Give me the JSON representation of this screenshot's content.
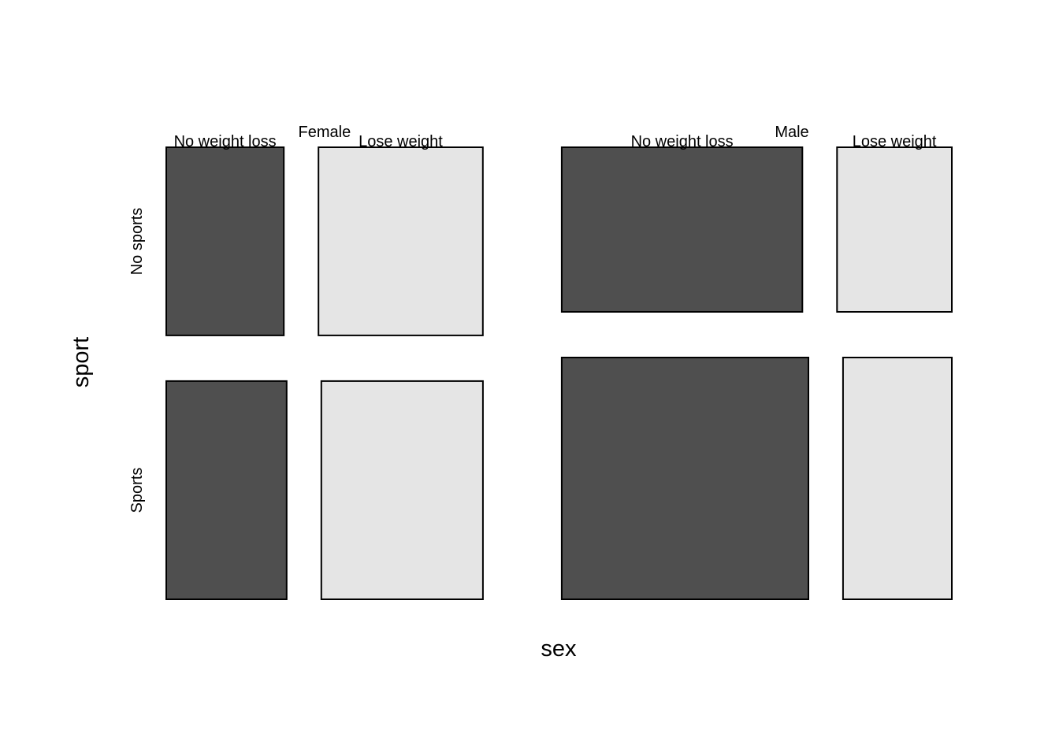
{
  "chart_data": {
    "type": "mosaic",
    "title": "",
    "xlabel": "sex",
    "ylabel": "sport",
    "x_categories": [
      "Female",
      "Male"
    ],
    "y_categories": [
      "No sports",
      "Sports"
    ],
    "sub_categories": [
      "No weight loss",
      "Lose weight"
    ],
    "colors": {
      "No weight loss": "#4f4f4f",
      "Lose weight": "#e5e5e5",
      "border": "#000000"
    },
    "proportions": {
      "sex": {
        "Female": 0.448,
        "Male": 0.552
      },
      "sport_given_sex": {
        "Female": {
          "No sports": 0.463,
          "Sports": 0.537
        },
        "Male": {
          "No sports": 0.405,
          "Sports": 0.595
        }
      },
      "weight_given_sex_sport": {
        "Female": {
          "No sports": {
            "No weight loss": 0.417,
            "Lose weight": 0.583
          },
          "Sports": {
            "No weight loss": 0.427,
            "Lose weight": 0.573
          }
        },
        "Male": {
          "No sports": {
            "No weight loss": 0.677,
            "Lose weight": 0.323
          },
          "Sports": {
            "No weight loss": 0.694,
            "Lose weight": 0.306
          }
        }
      }
    }
  }
}
